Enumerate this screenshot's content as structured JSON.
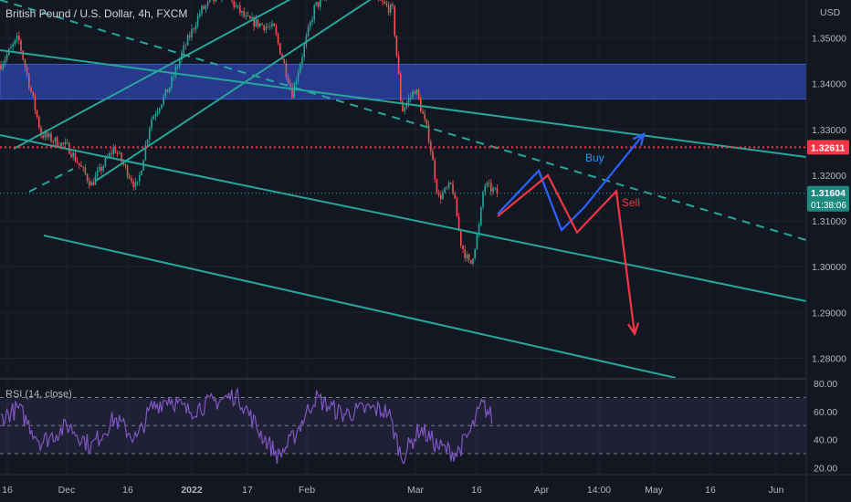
{
  "header": {
    "title": "British Pound / U.S. Dollar, 4h, FXCM",
    "currency": "USD"
  },
  "colors": {
    "background": "#131722",
    "channel": "#26a69a",
    "zone": "#2a3f9e",
    "up_candle": "#26a69a",
    "down_candle": "#ef5350",
    "red_level": "#f23645",
    "price_tag": "#1e8a7e",
    "rsi_line": "#7e57c2",
    "buy": "#2962ff",
    "sell": "#f23645"
  },
  "chart_data": [
    {
      "type": "candlestick",
      "title": "British Pound / U.S. Dollar, 4h, FXCM",
      "y_ticks": [
        "1.35000",
        "1.34000",
        "1.33000",
        "1.32000",
        "1.31000",
        "1.30000",
        "1.29000",
        "1.28000"
      ],
      "x_ticks": [
        "16",
        "Dec",
        "16",
        "2022",
        "17",
        "Feb",
        "Mar",
        "16",
        "Apr",
        "14:00",
        "May",
        "16",
        "Jun"
      ],
      "ylim": [
        1.2755,
        1.3583
      ],
      "price_path": [
        [
          0,
          1.344
        ],
        [
          20,
          1.35
        ],
        [
          45,
          1.329
        ],
        [
          75,
          1.326
        ],
        [
          100,
          1.318
        ],
        [
          125,
          1.326
        ],
        [
          150,
          1.317
        ],
        [
          165,
          1.332
        ],
        [
          185,
          1.339
        ],
        [
          200,
          1.347
        ],
        [
          220,
          1.356
        ],
        [
          245,
          1.36
        ],
        [
          270,
          1.354
        ],
        [
          300,
          1.352
        ],
        [
          320,
          1.338
        ],
        [
          345,
          1.357
        ],
        [
          375,
          1.361
        ],
        [
          400,
          1.36
        ],
        [
          430,
          1.356
        ],
        [
          440,
          1.334
        ],
        [
          455,
          1.339
        ],
        [
          470,
          1.328
        ],
        [
          480,
          1.315
        ],
        [
          495,
          1.318
        ],
        [
          505,
          1.305
        ],
        [
          515,
          1.3
        ],
        [
          525,
          1.309
        ],
        [
          530,
          1.318
        ],
        [
          545,
          1.316
        ]
      ],
      "key_level": {
        "value": 1.32611,
        "label": "1.32611"
      },
      "current_price": {
        "value": 1.31604,
        "label": "1.31604",
        "countdown": "01:38:06"
      },
      "resistance_zone": [
        1.33665,
        1.34425
      ],
      "scenarios": [
        {
          "name": "Buy",
          "path": [
            [
              545,
              1.3115
            ],
            [
              590,
              1.321
            ],
            [
              615,
              1.308
            ],
            [
              640,
              1.313
            ],
            [
              705,
              1.329
            ]
          ]
        },
        {
          "name": "Sell",
          "path": [
            [
              545,
              1.311
            ],
            [
              600,
              1.32
            ],
            [
              632,
              1.3075
            ],
            [
              675,
              1.3165
            ],
            [
              695,
              1.2853
            ]
          ]
        }
      ]
    },
    {
      "type": "line",
      "title": "RSI (14, close)",
      "y_ticks": [
        "80.00",
        "60.00",
        "40.00",
        "20.00"
      ],
      "ylim": [
        15,
        82
      ],
      "bands": [
        30,
        70
      ],
      "values_note_free": true,
      "series_path": [
        [
          0,
          55
        ],
        [
          20,
          62
        ],
        [
          45,
          38
        ],
        [
          75,
          50
        ],
        [
          100,
          35
        ],
        [
          125,
          55
        ],
        [
          150,
          40
        ],
        [
          165,
          62
        ],
        [
          185,
          70
        ],
        [
          205,
          60
        ],
        [
          230,
          66
        ],
        [
          260,
          72
        ],
        [
          285,
          45
        ],
        [
          305,
          28
        ],
        [
          320,
          40
        ],
        [
          345,
          70
        ],
        [
          375,
          58
        ],
        [
          405,
          62
        ],
        [
          425,
          60
        ],
        [
          440,
          27
        ],
        [
          460,
          48
        ],
        [
          480,
          35
        ],
        [
          500,
          30
        ],
        [
          515,
          45
        ],
        [
          528,
          65
        ],
        [
          540,
          55
        ]
      ]
    }
  ]
}
